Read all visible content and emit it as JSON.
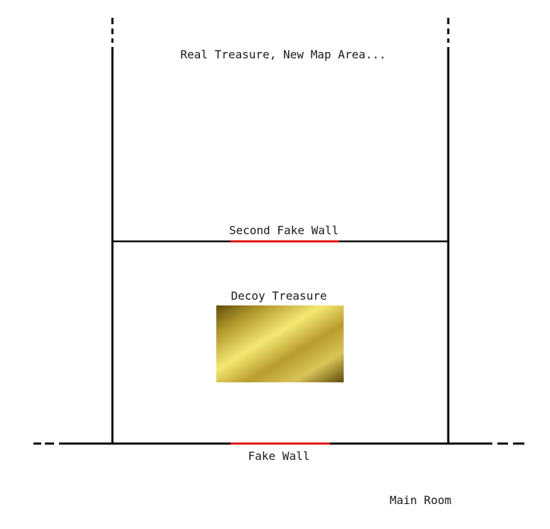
{
  "labels": {
    "real_treasure": "Real Treasure, New Map Area...",
    "second_fake_wall": "Second Fake Wall",
    "decoy_treasure": "Decoy Treasure",
    "fake_wall": "Fake Wall",
    "main_room": "Main Room"
  },
  "colors": {
    "wall": "#000000",
    "fake_wall": "#e01010",
    "gold_dark": "#6b5a10",
    "gold_mid": "#b89a2a",
    "gold_light": "#f2e570"
  }
}
